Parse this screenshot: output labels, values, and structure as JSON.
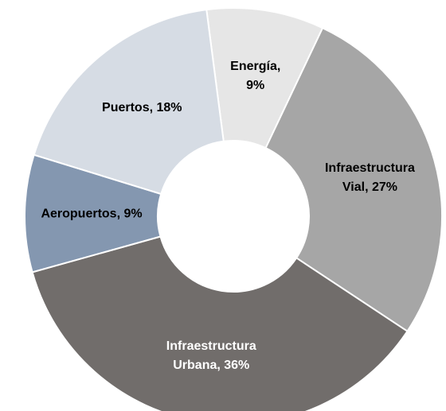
{
  "chart_data": {
    "type": "donut",
    "labels": [
      [
        "Energía,",
        "9%"
      ],
      [
        "Infraestructura",
        "Vial, 27%"
      ],
      [
        "Infraestructura",
        "Urbana, 36%"
      ],
      [
        "Aeropuertos, 9%"
      ],
      [
        "Puertos, 18%"
      ]
    ],
    "values": [
      9,
      27,
      36,
      9,
      18
    ],
    "colors": [
      "#e6e6e6",
      "#a6a6a6",
      "#716d6b",
      "#8497b0",
      "#d6dce4"
    ],
    "label_colors": [
      "#000000",
      "#000000",
      "#ffffff",
      "#000000",
      "#000000"
    ]
  }
}
